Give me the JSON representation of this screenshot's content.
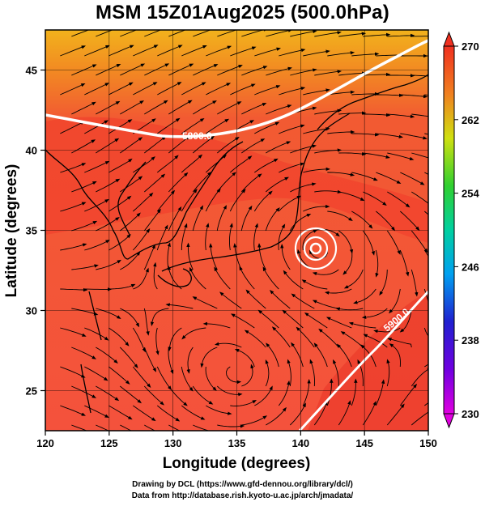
{
  "title": "MSM 15Z01Aug2025 (500.0hPa)",
  "colors": {
    "field_main": "#f4523c",
    "field_warm": "#f03a2a",
    "field_north": "#f28a22",
    "field_far_north": "#f2b21c",
    "contour": "#ffffff",
    "stream": "#000000"
  },
  "map": {
    "lon_range": [
      120,
      150
    ],
    "lat_range": [
      22.5,
      47.5
    ],
    "lon_ticks": [
      "120",
      "125",
      "130",
      "135",
      "140",
      "145",
      "150"
    ],
    "lat_ticks": [
      "25",
      "30",
      "35",
      "40",
      "45"
    ],
    "xlabel": "Longitude (degrees)",
    "ylabel": "Latitude  (degrees)",
    "contour_labels": [
      "5800.0",
      "5900.0"
    ]
  },
  "colorbar": {
    "labels": [
      "270",
      "262",
      "254",
      "246",
      "238",
      "230"
    ]
  },
  "credits": {
    "line1": "Drawing by DCL (https://www.gfd-dennou.org/library/dcl/)",
    "line2": "Data from http://database.rish.kyoto-u.ac.jp/arch/jmadata/"
  }
}
